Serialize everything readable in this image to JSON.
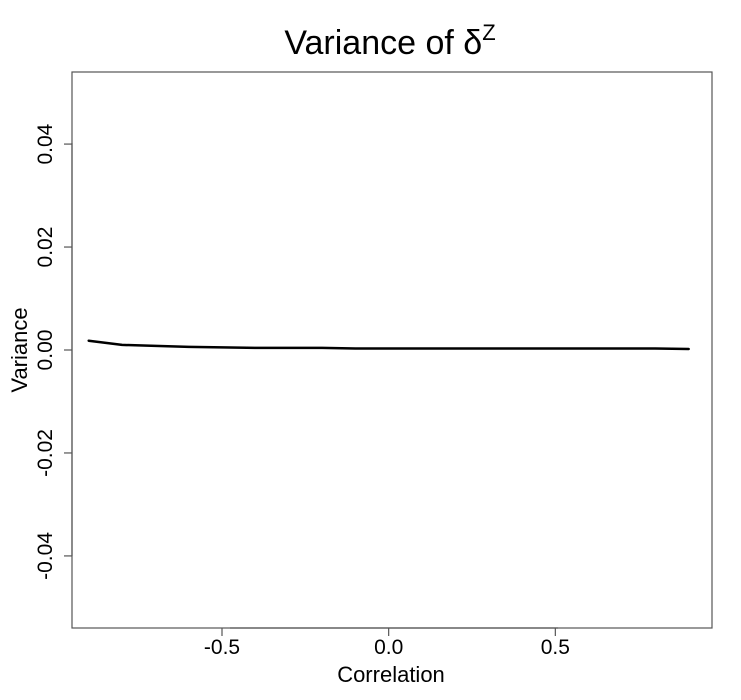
{
  "chart_data": {
    "type": "line",
    "title": "Variance of δ",
    "title_superscript": "Z",
    "xlabel": "Correlation",
    "ylabel": "Variance",
    "xlim": [
      -0.95,
      0.97
    ],
    "ylim": [
      -0.054,
      0.054
    ],
    "xticks": [
      -0.5,
      0.0,
      0.5
    ],
    "xtick_labels": [
      "-0.5",
      "0.0",
      "0.5"
    ],
    "yticks": [
      -0.04,
      -0.02,
      0.0,
      0.02,
      0.04
    ],
    "ytick_labels": [
      "-0.04",
      "-0.02",
      "0.00",
      "0.02",
      "0.04"
    ],
    "grid": false,
    "legend": "none",
    "series": [
      {
        "color": "#000000",
        "x": [
          -0.9,
          -0.8,
          -0.7,
          -0.6,
          -0.5,
          -0.4,
          -0.3,
          -0.2,
          -0.1,
          0.0,
          0.1,
          0.2,
          0.3,
          0.4,
          0.5,
          0.6,
          0.7,
          0.8,
          0.9
        ],
        "y": [
          0.0018,
          0.001,
          0.0008,
          0.0006,
          0.0005,
          0.0004,
          0.0004,
          0.0004,
          0.0003,
          0.0003,
          0.0003,
          0.0003,
          0.0003,
          0.0003,
          0.0003,
          0.0003,
          0.0003,
          0.0003,
          0.0002
        ]
      }
    ]
  }
}
